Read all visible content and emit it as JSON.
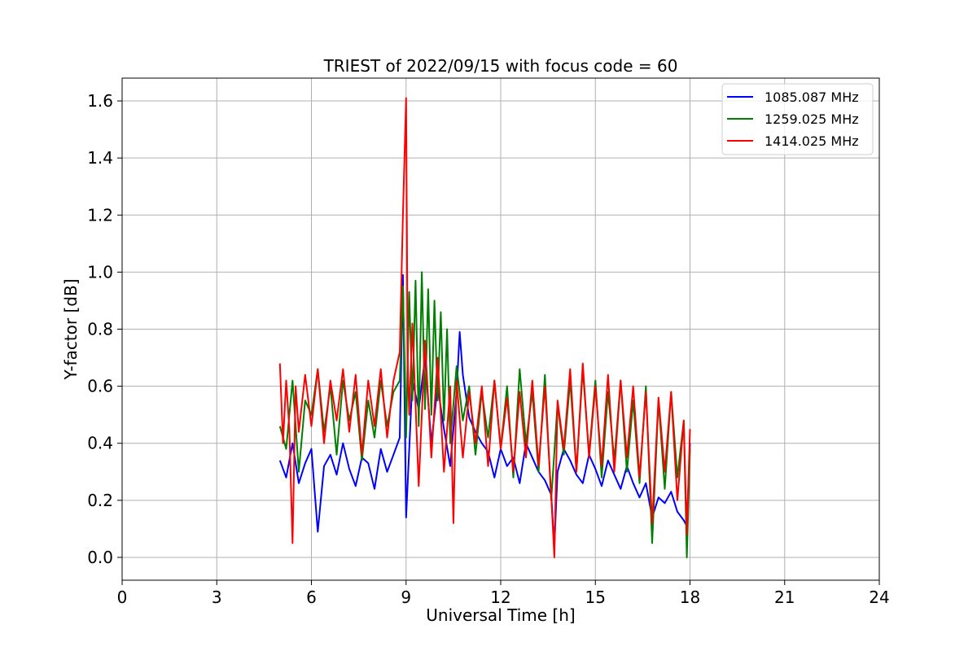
{
  "chart_data": {
    "type": "line",
    "title": "TRIEST of 2022/09/15 with focus code = 60",
    "xlabel": "Universal Time [h]",
    "ylabel": "Y-factor [dB]",
    "xlim": [
      0,
      24
    ],
    "ylim": [
      -0.08,
      1.68
    ],
    "xticks": [
      0,
      3,
      6,
      9,
      12,
      15,
      18,
      21,
      24
    ],
    "yticks": [
      0.0,
      0.2,
      0.4,
      0.6,
      0.8,
      1.0,
      1.2,
      1.4,
      1.6
    ],
    "ytick_labels": [
      "0.0",
      "0.2",
      "0.4",
      "0.6",
      "0.8",
      "1.0",
      "1.2",
      "1.4",
      "1.6"
    ],
    "grid": true,
    "legend_position": "top-right",
    "series": [
      {
        "name": "1085.087 MHz",
        "color": "#0000ff",
        "x": [
          5.0,
          5.2,
          5.4,
          5.6,
          5.8,
          6.0,
          6.2,
          6.4,
          6.6,
          6.8,
          7.0,
          7.2,
          7.4,
          7.6,
          7.8,
          8.0,
          8.2,
          8.4,
          8.6,
          8.8,
          8.9,
          9.0,
          9.2,
          9.4,
          9.6,
          9.8,
          10.0,
          10.2,
          10.4,
          10.6,
          10.7,
          10.8,
          11.0,
          11.2,
          11.4,
          11.6,
          11.8,
          12.0,
          12.2,
          12.4,
          12.6,
          12.8,
          13.0,
          13.2,
          13.4,
          13.6,
          13.7,
          13.8,
          14.0,
          14.2,
          14.4,
          14.6,
          14.8,
          15.0,
          15.2,
          15.4,
          15.6,
          15.8,
          16.0,
          16.2,
          16.4,
          16.6,
          16.8,
          17.0,
          17.2,
          17.4,
          17.6,
          17.8,
          17.9,
          18.0
        ],
        "y": [
          0.34,
          0.28,
          0.4,
          0.26,
          0.33,
          0.38,
          0.09,
          0.32,
          0.36,
          0.29,
          0.4,
          0.31,
          0.25,
          0.35,
          0.33,
          0.24,
          0.38,
          0.3,
          0.36,
          0.42,
          0.99,
          0.14,
          0.62,
          0.52,
          0.7,
          0.4,
          0.6,
          0.45,
          0.32,
          0.58,
          0.79,
          0.64,
          0.49,
          0.44,
          0.4,
          0.37,
          0.28,
          0.38,
          0.32,
          0.35,
          0.26,
          0.4,
          0.35,
          0.3,
          0.27,
          0.22,
          0.04,
          0.3,
          0.38,
          0.34,
          0.29,
          0.26,
          0.36,
          0.31,
          0.25,
          0.34,
          0.29,
          0.24,
          0.32,
          0.26,
          0.21,
          0.26,
          0.14,
          0.21,
          0.19,
          0.23,
          0.16,
          0.13,
          0.11,
          0.4
        ]
      },
      {
        "name": "1259.025 MHz",
        "color": "#008000",
        "x": [
          5.0,
          5.2,
          5.4,
          5.6,
          5.8,
          6.0,
          6.2,
          6.4,
          6.6,
          6.8,
          7.0,
          7.2,
          7.4,
          7.6,
          7.8,
          8.0,
          8.2,
          8.4,
          8.6,
          8.8,
          8.9,
          9.0,
          9.1,
          9.2,
          9.3,
          9.4,
          9.5,
          9.6,
          9.7,
          9.8,
          9.9,
          10.0,
          10.1,
          10.2,
          10.3,
          10.4,
          10.6,
          10.8,
          11.0,
          11.2,
          11.4,
          11.6,
          11.8,
          12.0,
          12.2,
          12.4,
          12.6,
          12.8,
          13.0,
          13.2,
          13.4,
          13.6,
          13.8,
          14.0,
          14.2,
          14.4,
          14.6,
          14.8,
          15.0,
          15.2,
          15.4,
          15.6,
          15.8,
          16.0,
          16.2,
          16.4,
          16.6,
          16.8,
          17.0,
          17.2,
          17.4,
          17.6,
          17.8,
          17.9,
          18.0
        ],
        "y": [
          0.46,
          0.38,
          0.62,
          0.3,
          0.55,
          0.5,
          0.66,
          0.44,
          0.6,
          0.36,
          0.62,
          0.48,
          0.58,
          0.34,
          0.55,
          0.42,
          0.62,
          0.46,
          0.58,
          0.62,
          0.95,
          0.42,
          0.93,
          0.55,
          0.97,
          0.46,
          1.0,
          0.52,
          0.94,
          0.5,
          0.9,
          0.55,
          0.86,
          0.48,
          0.8,
          0.4,
          0.67,
          0.48,
          0.6,
          0.36,
          0.58,
          0.42,
          0.62,
          0.38,
          0.6,
          0.28,
          0.66,
          0.4,
          0.58,
          0.3,
          0.64,
          0.2,
          0.54,
          0.36,
          0.62,
          0.3,
          0.66,
          0.36,
          0.62,
          0.28,
          0.58,
          0.34,
          0.62,
          0.3,
          0.55,
          0.26,
          0.6,
          0.05,
          0.55,
          0.24,
          0.58,
          0.28,
          0.48,
          0.0,
          0.38
        ]
      },
      {
        "name": "1414.025 MHz",
        "color": "#ff0000",
        "x": [
          5.0,
          5.1,
          5.2,
          5.3,
          5.4,
          5.5,
          5.6,
          5.8,
          6.0,
          6.2,
          6.4,
          6.6,
          6.8,
          7.0,
          7.2,
          7.4,
          7.6,
          7.8,
          8.0,
          8.2,
          8.4,
          8.6,
          8.8,
          8.9,
          9.0,
          9.05,
          9.1,
          9.2,
          9.4,
          9.6,
          9.8,
          10.0,
          10.2,
          10.4,
          10.5,
          10.6,
          10.8,
          11.0,
          11.2,
          11.4,
          11.6,
          11.8,
          12.0,
          12.2,
          12.4,
          12.6,
          12.8,
          13.0,
          13.2,
          13.4,
          13.6,
          13.7,
          13.8,
          14.0,
          14.2,
          14.4,
          14.6,
          14.8,
          15.0,
          15.2,
          15.4,
          15.6,
          15.8,
          16.0,
          16.2,
          16.4,
          16.6,
          16.8,
          17.0,
          17.2,
          17.4,
          17.6,
          17.8,
          17.9,
          18.0
        ],
        "y": [
          0.68,
          0.4,
          0.62,
          0.45,
          0.05,
          0.6,
          0.44,
          0.64,
          0.46,
          0.66,
          0.4,
          0.62,
          0.48,
          0.66,
          0.44,
          0.64,
          0.36,
          0.62,
          0.46,
          0.66,
          0.42,
          0.62,
          0.72,
          1.2,
          1.61,
          0.7,
          0.5,
          0.82,
          0.25,
          0.76,
          0.35,
          0.7,
          0.3,
          0.6,
          0.12,
          0.62,
          0.35,
          0.58,
          0.4,
          0.6,
          0.32,
          0.62,
          0.38,
          0.56,
          0.3,
          0.58,
          0.35,
          0.62,
          0.32,
          0.6,
          0.22,
          0.0,
          0.55,
          0.38,
          0.66,
          0.3,
          0.68,
          0.35,
          0.6,
          0.32,
          0.64,
          0.3,
          0.62,
          0.35,
          0.6,
          0.28,
          0.58,
          0.12,
          0.56,
          0.3,
          0.58,
          0.2,
          0.48,
          0.08,
          0.45
        ]
      }
    ]
  }
}
